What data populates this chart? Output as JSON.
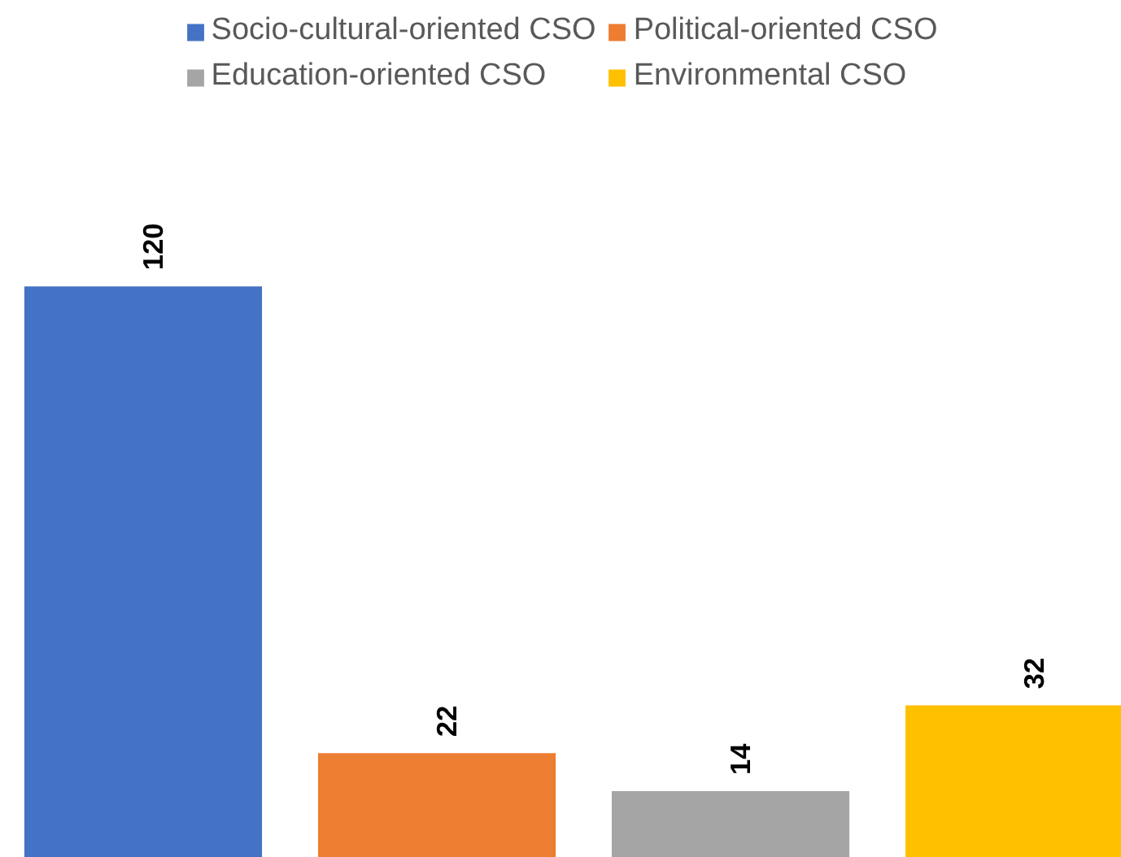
{
  "chart_data": {
    "type": "bar",
    "categories": [
      null
    ],
    "series": [
      {
        "name": "Socio-cultural-oriented CSO",
        "color": "#4472c4",
        "values": [
          120
        ]
      },
      {
        "name": "Political-oriented CSO",
        "color": "#ed7d31",
        "values": [
          22
        ]
      },
      {
        "name": "Education-oriented CSO",
        "color": "#a5a5a5",
        "values": [
          14
        ]
      },
      {
        "name": "Environmental CSO",
        "color": "#ffc000",
        "values": [
          32
        ]
      }
    ],
    "data_labels": true,
    "legend": "top",
    "grid": false
  }
}
